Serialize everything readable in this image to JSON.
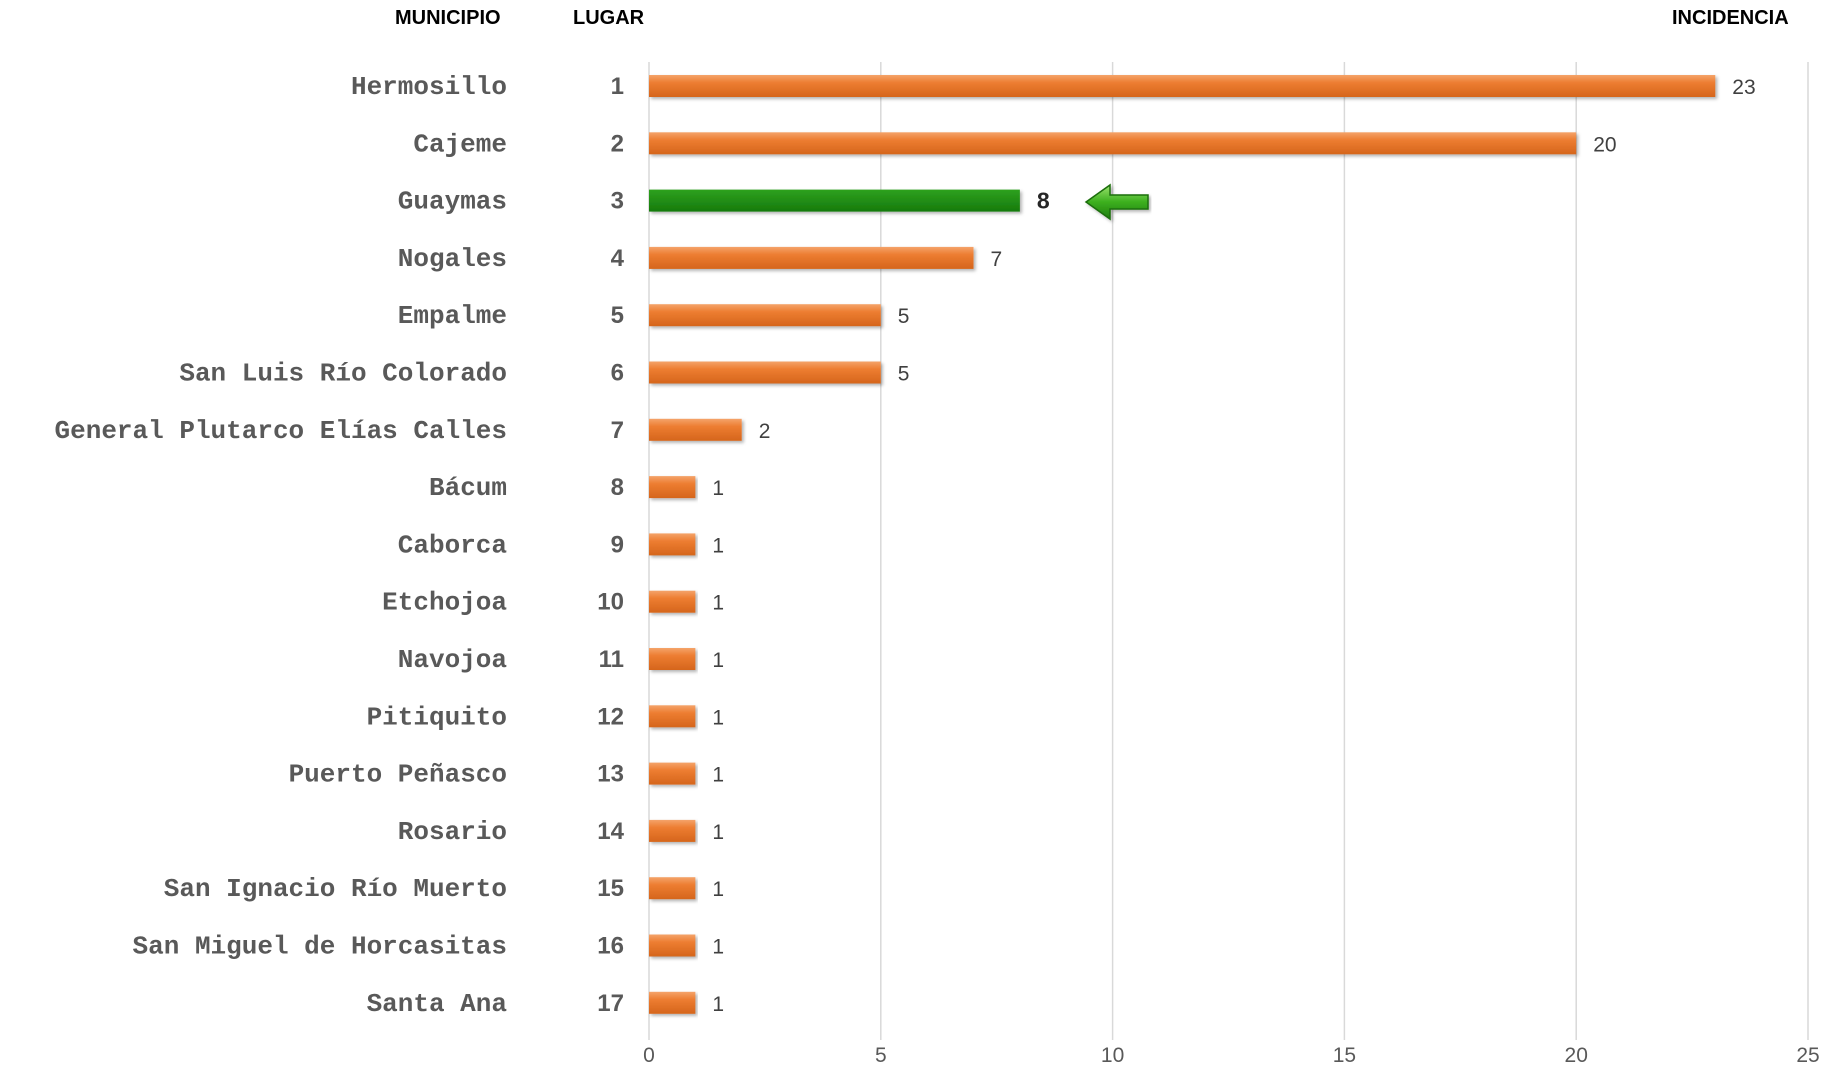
{
  "chart_data": {
    "type": "bar",
    "orientation": "horizontal",
    "headers": {
      "municipio": "MUNICIPIO",
      "lugar": "LUGAR",
      "incidencia": "INCIDENCIA"
    },
    "categories": [
      "Hermosillo",
      "Cajeme",
      "Guaymas",
      "Nogales",
      "Empalme",
      "San Luis Río Colorado",
      "General Plutarco Elías Calles",
      "Bácum",
      "Caborca",
      "Etchojoa",
      "Navojoa",
      "Pitiquito",
      "Puerto Peñasco",
      "Rosario",
      "San Ignacio Río Muerto",
      "San Miguel de Horcasitas",
      "Santa Ana"
    ],
    "ranks": [
      "1",
      "2",
      "3",
      "4",
      "5",
      "6",
      "7",
      "8",
      "9",
      "10",
      "11",
      "12",
      "13",
      "14",
      "15",
      "16",
      "17"
    ],
    "values": [
      23,
      20,
      8,
      7,
      5,
      5,
      2,
      1,
      1,
      1,
      1,
      1,
      1,
      1,
      1,
      1,
      1
    ],
    "highlight_index": 2,
    "xlim": [
      0,
      25
    ],
    "xticks": [
      0,
      5,
      10,
      15,
      20,
      25
    ],
    "grid": true,
    "colors": {
      "bar": "#ed7d31",
      "highlight": "#1e8a12",
      "arrow": "#3cb01e",
      "grid": "#d9d9d9"
    }
  }
}
